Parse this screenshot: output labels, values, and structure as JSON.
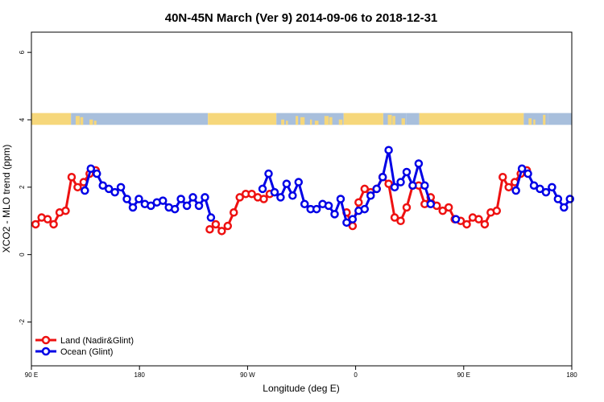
{
  "chart_data": {
    "type": "line",
    "title": "40N-45N March (Ver 9)   2014-09-06 to 2018-12-31",
    "xlabel": "Longitude (deg E)",
    "ylabel": "XCO2 - MLO trend (ppm)",
    "xlim": [
      90,
      540
    ],
    "ylim": [
      -3.3,
      6.6
    ],
    "x_ticks": [
      {
        "value": 90,
        "label": "90 E"
      },
      {
        "value": 180,
        "label": "180"
      },
      {
        "value": 270,
        "label": "90 W"
      },
      {
        "value": 360,
        "label": "0"
      },
      {
        "value": 450,
        "label": "90 E"
      },
      {
        "value": 540,
        "label": "180"
      }
    ],
    "y_ticks": [
      {
        "value": -2,
        "label": "-2"
      },
      {
        "value": 0,
        "label": "0"
      },
      {
        "value": 2,
        "label": "2"
      },
      {
        "value": 4,
        "label": "4"
      },
      {
        "value": 6,
        "label": "6"
      }
    ],
    "legend_position": "bottom-left",
    "land_ocean_mask": {
      "y_range": [
        3.85,
        4.2
      ],
      "land_color": "#f6d77b",
      "ocean_color": "#a8bfdc",
      "segments": [
        {
          "from": 90,
          "to": 123,
          "kind": "land"
        },
        {
          "from": 123,
          "to": 146,
          "kind": "mixed"
        },
        {
          "from": 146,
          "to": 237,
          "kind": "ocean"
        },
        {
          "from": 237,
          "to": 294,
          "kind": "land"
        },
        {
          "from": 294,
          "to": 350,
          "kind": "mixed"
        },
        {
          "from": 350,
          "to": 383,
          "kind": "land"
        },
        {
          "from": 383,
          "to": 402,
          "kind": "mixed"
        },
        {
          "from": 402,
          "to": 413,
          "kind": "ocean"
        },
        {
          "from": 413,
          "to": 500,
          "kind": "land"
        },
        {
          "from": 500,
          "to": 520,
          "kind": "mixed"
        },
        {
          "from": 520,
          "to": 540,
          "kind": "ocean"
        }
      ]
    },
    "series": [
      {
        "name": "Land (Nadir&Glint)",
        "color": "#ee1111",
        "points": [
          [
            93.5,
            0.9
          ],
          [
            98.5,
            1.1
          ],
          [
            103.5,
            1.05
          ],
          [
            108.5,
            0.9
          ],
          [
            113.5,
            1.25
          ],
          [
            118.5,
            1.3
          ],
          [
            123.5,
            2.3
          ],
          [
            128.5,
            2.0
          ],
          [
            133.5,
            2.15
          ],
          [
            138.5,
            2.4
          ],
          [
            143.5,
            2.5
          ],
          [
            null,
            null
          ],
          [
            238.5,
            0.75
          ],
          [
            243.5,
            0.9
          ],
          [
            248.5,
            0.7
          ],
          [
            253.5,
            0.85
          ],
          [
            258.5,
            1.25
          ],
          [
            263.5,
            1.7
          ],
          [
            268.5,
            1.8
          ],
          [
            273.5,
            1.8
          ],
          [
            278.5,
            1.7
          ],
          [
            283.5,
            1.65
          ],
          [
            288.5,
            1.8
          ],
          [
            null,
            null
          ],
          [
            352.5,
            1.25
          ],
          [
            357.5,
            0.85
          ],
          [
            362.5,
            1.55
          ],
          [
            367.5,
            1.95
          ],
          [
            372.5,
            1.85
          ],
          [
            377.5,
            1.95
          ],
          [
            382.5,
            2.3
          ],
          [
            387.5,
            2.1
          ],
          [
            392.5,
            1.1
          ],
          [
            397.5,
            1.0
          ],
          [
            402.5,
            1.4
          ],
          [
            407.5,
            2.05
          ],
          [
            412.5,
            2.05
          ],
          [
            417.5,
            1.5
          ],
          [
            422.5,
            1.7
          ],
          [
            427.5,
            1.45
          ],
          [
            432.5,
            1.3
          ],
          [
            437.5,
            1.4
          ],
          [
            442.5,
            1.05
          ],
          [
            447.5,
            1.0
          ],
          [
            452.5,
            0.9
          ],
          [
            457.5,
            1.1
          ],
          [
            462.5,
            1.05
          ],
          [
            467.5,
            0.9
          ],
          [
            472.5,
            1.25
          ],
          [
            477.5,
            1.3
          ],
          [
            482.5,
            2.3
          ],
          [
            487.5,
            2.0
          ],
          [
            492.5,
            2.15
          ],
          [
            497.5,
            2.4
          ],
          [
            502.5,
            2.5
          ]
        ]
      },
      {
        "name": "Ocean (Glint)",
        "color": "#0000e6",
        "points": [
          [
            134.5,
            1.9
          ],
          [
            139.5,
            2.55
          ],
          [
            144.5,
            2.4
          ],
          [
            149.5,
            2.05
          ],
          [
            154.5,
            1.95
          ],
          [
            159.5,
            1.85
          ],
          [
            164.5,
            2.0
          ],
          [
            169.5,
            1.65
          ],
          [
            174.5,
            1.4
          ],
          [
            179.5,
            1.65
          ],
          [
            184.5,
            1.5
          ],
          [
            189.5,
            1.45
          ],
          [
            194.5,
            1.55
          ],
          [
            199.5,
            1.6
          ],
          [
            204.5,
            1.4
          ],
          [
            209.5,
            1.35
          ],
          [
            214.5,
            1.65
          ],
          [
            219.5,
            1.45
          ],
          [
            224.5,
            1.7
          ],
          [
            229.5,
            1.45
          ],
          [
            234.5,
            1.7
          ],
          [
            239.5,
            1.1
          ],
          [
            null,
            null
          ],
          [
            282.5,
            1.95
          ],
          [
            287.5,
            2.4
          ],
          [
            292.5,
            1.85
          ],
          [
            297.5,
            1.7
          ],
          [
            302.5,
            2.1
          ],
          [
            307.5,
            1.75
          ],
          [
            312.5,
            2.15
          ],
          [
            317.5,
            1.5
          ],
          [
            322.5,
            1.35
          ],
          [
            327.5,
            1.35
          ],
          [
            332.5,
            1.5
          ],
          [
            337.5,
            1.45
          ],
          [
            342.5,
            1.2
          ],
          [
            347.5,
            1.65
          ],
          [
            352.5,
            0.95
          ],
          [
            357.5,
            1.05
          ],
          [
            362.5,
            1.3
          ],
          [
            367.5,
            1.35
          ],
          [
            372.5,
            1.75
          ],
          [
            377.5,
            1.95
          ],
          [
            382.5,
            2.3
          ],
          [
            387.5,
            3.1
          ],
          [
            392.5,
            2.0
          ],
          [
            397.5,
            2.15
          ],
          [
            402.5,
            2.45
          ],
          [
            407.5,
            2.05
          ],
          [
            412.5,
            2.7
          ],
          [
            417.5,
            2.05
          ],
          [
            422.5,
            1.5
          ],
          [
            null,
            null
          ],
          [
            443.5,
            1.05
          ],
          [
            null,
            null
          ],
          [
            493.5,
            1.9
          ],
          [
            498.5,
            2.55
          ],
          [
            503.5,
            2.4
          ],
          [
            508.5,
            2.05
          ],
          [
            513.5,
            1.95
          ],
          [
            518.5,
            1.85
          ],
          [
            523.5,
            2.0
          ],
          [
            528.5,
            1.65
          ],
          [
            533.5,
            1.4
          ],
          [
            538.5,
            1.65
          ]
        ]
      }
    ]
  }
}
